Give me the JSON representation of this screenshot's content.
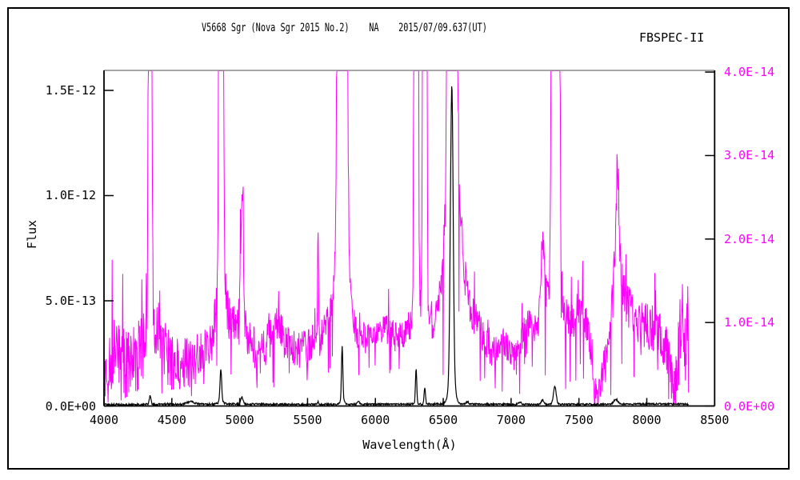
{
  "figure": {
    "instrument_label": "FBSPEC-II"
  },
  "chart_data": {
    "type": "line",
    "title": "V5668 Sgr (Nova Sgr 2015 No.2)    NA    2015/07/09.637(UT)",
    "xlabel": "Wavelength(Å)",
    "ylabel_left": "Flux",
    "grid": false,
    "legend": "none",
    "x_range": [
      4000,
      8500
    ],
    "x_axis": {
      "tick_values": [
        4000,
        4500,
        5000,
        5500,
        6000,
        6500,
        7000,
        7500,
        8000,
        8500
      ],
      "tick_labels": [
        "4000",
        "4500",
        "5000",
        "5500",
        "6000",
        "6500",
        "7000",
        "7500",
        "8000",
        "8500"
      ]
    },
    "left_axis": {
      "color": "#000000",
      "value_scale": "1e-12",
      "top_value": 1.595,
      "tick_values": [
        0,
        0.5,
        1.0,
        1.5
      ],
      "tick_labels": [
        "0.0E+00",
        "5.0E-13",
        "1.0E-12",
        "1.5E-12"
      ]
    },
    "right_axis": {
      "color": "#ff00ff",
      "value_scale": "1e-14",
      "top_value": 4.02,
      "tick_values": [
        0,
        1.0,
        2.0,
        3.0,
        4.0
      ],
      "tick_labels": [
        "0.0E+00",
        "1.0E-14",
        "2.0E-14",
        "3.0E-14",
        "4.0E-14"
      ]
    },
    "frame": {
      "top_line_color": "#888888",
      "axis_color": "#000000"
    },
    "series": [
      {
        "name": "magenta-trace-right-axis",
        "color": "#ff00ff",
        "axis": "right",
        "value_scale": "1e-14",
        "x_start": 4000,
        "x_end": 8308,
        "step": 3,
        "seed": 20150709,
        "floor": 0.015,
        "spike_prob": 0.055,
        "spike_mult": 2.2,
        "dip_prob": 0.05,
        "baseline_anchors": [
          [
            4000,
            0.45
          ],
          [
            4060,
            0.6
          ],
          [
            4130,
            0.5
          ],
          [
            4200,
            0.55
          ],
          [
            4270,
            0.6
          ],
          [
            4310,
            0.75
          ],
          [
            4380,
            0.8
          ],
          [
            4450,
            0.62
          ],
          [
            4550,
            0.5
          ],
          [
            4650,
            0.55
          ],
          [
            4760,
            0.65
          ],
          [
            4830,
            0.95
          ],
          [
            4905,
            1.05
          ],
          [
            4975,
            0.95
          ],
          [
            5060,
            0.85
          ],
          [
            5150,
            0.58
          ],
          [
            5220,
            0.8
          ],
          [
            5280,
            1.05
          ],
          [
            5340,
            0.75
          ],
          [
            5430,
            0.65
          ],
          [
            5520,
            0.75
          ],
          [
            5610,
            0.85
          ],
          [
            5665,
            1.1
          ],
          [
            5700,
            1.35
          ],
          [
            5790,
            1.5
          ],
          [
            5820,
            1.0
          ],
          [
            5870,
            0.85
          ],
          [
            5960,
            0.8
          ],
          [
            6060,
            0.95
          ],
          [
            6160,
            0.8
          ],
          [
            6230,
            0.9
          ],
          [
            6285,
            1.1
          ],
          [
            6330,
            1.25
          ],
          [
            6400,
            1.05
          ],
          [
            6460,
            0.95
          ],
          [
            6520,
            1.1
          ],
          [
            6620,
            1.5
          ],
          [
            6690,
            1.2
          ],
          [
            6780,
            0.9
          ],
          [
            6860,
            0.62
          ],
          [
            6940,
            0.78
          ],
          [
            7030,
            0.58
          ],
          [
            7120,
            1.0
          ],
          [
            7190,
            0.9
          ],
          [
            7265,
            1.25
          ],
          [
            7370,
            1.15
          ],
          [
            7450,
            1.0
          ],
          [
            7520,
            1.25
          ],
          [
            7590,
            0.7
          ],
          [
            7615,
            0.2
          ],
          [
            7645,
            0.12
          ],
          [
            7680,
            0.5
          ],
          [
            7715,
            0.85
          ],
          [
            7755,
            1.15
          ],
          [
            7805,
            1.45
          ],
          [
            7845,
            1.25
          ],
          [
            7925,
            1.05
          ],
          [
            8010,
            0.95
          ],
          [
            8090,
            0.88
          ],
          [
            8140,
            0.72
          ],
          [
            8175,
            0.35
          ],
          [
            8205,
            0.08
          ],
          [
            8235,
            0.6
          ],
          [
            8262,
            1.1
          ],
          [
            8285,
            0.65
          ],
          [
            8302,
            1.1
          ],
          [
            8308,
            0.55
          ]
        ],
        "noise_anchors": [
          [
            4000,
            0.5
          ],
          [
            4350,
            0.42
          ],
          [
            4700,
            0.3
          ],
          [
            5100,
            0.25
          ],
          [
            5600,
            0.2
          ],
          [
            6100,
            0.18
          ],
          [
            6560,
            0.25
          ],
          [
            7000,
            0.16
          ],
          [
            7400,
            0.2
          ],
          [
            7800,
            0.3
          ],
          [
            8120,
            0.28
          ],
          [
            8308,
            0.45
          ]
        ],
        "emission_lines": [
          [
            4340,
            30,
            7
          ],
          [
            4340,
            0.5,
            20
          ],
          [
            4863,
            60,
            8
          ],
          [
            4863,
            0.7,
            25
          ],
          [
            5017,
            1.7,
            10
          ],
          [
            5577,
            1.1,
            4
          ],
          [
            5755,
            200,
            14
          ],
          [
            5757,
            1.0,
            35
          ],
          [
            6300,
            120,
            7
          ],
          [
            6364,
            90,
            7
          ],
          [
            6565,
            300,
            13
          ],
          [
            6565,
            2.2,
            45
          ],
          [
            7232,
            0.85,
            13
          ],
          [
            7328,
            150,
            12
          ],
          [
            7328,
            0.8,
            28
          ],
          [
            7782,
            1.0,
            18
          ],
          [
            7782,
            0.55,
            4
          ]
        ]
      },
      {
        "name": "black-trace-left-axis",
        "color": "#000000",
        "axis": "left",
        "value_scale": "1e-12",
        "x_start": 4000,
        "x_end": 8308,
        "step": 3,
        "seed": 5668,
        "floor": 0.002,
        "spike_prob": 0.015,
        "spike_mult": 1.2,
        "dip_prob": 0,
        "baseline_anchors": [
          [
            4000,
            0.006
          ],
          [
            4500,
            0.008
          ],
          [
            5000,
            0.009
          ],
          [
            5500,
            0.008
          ],
          [
            6000,
            0.008
          ],
          [
            6500,
            0.01
          ],
          [
            7000,
            0.008
          ],
          [
            7600,
            0.008
          ],
          [
            8000,
            0.01
          ],
          [
            8308,
            0.009
          ]
        ],
        "noise_anchors": [
          [
            4000,
            0.005
          ],
          [
            6000,
            0.004
          ],
          [
            8308,
            0.004
          ]
        ],
        "emission_lines": [
          [
            4340,
            0.042,
            6
          ],
          [
            4640,
            0.012,
            28
          ],
          [
            4861,
            0.15,
            6
          ],
          [
            4861,
            0.012,
            20
          ],
          [
            5017,
            0.034,
            8
          ],
          [
            5577,
            0.012,
            5
          ],
          [
            5755,
            0.26,
            5
          ],
          [
            5757,
            0.02,
            15
          ],
          [
            5876,
            0.012,
            8
          ],
          [
            6300,
            0.17,
            5
          ],
          [
            6364,
            0.08,
            5
          ],
          [
            6563,
            1.4,
            10
          ],
          [
            6563,
            0.12,
            22
          ],
          [
            6678,
            0.012,
            8
          ],
          [
            7065,
            0.01,
            12
          ],
          [
            7232,
            0.02,
            10
          ],
          [
            7322,
            0.085,
            10
          ],
          [
            7772,
            0.022,
            16
          ]
        ]
      }
    ]
  }
}
